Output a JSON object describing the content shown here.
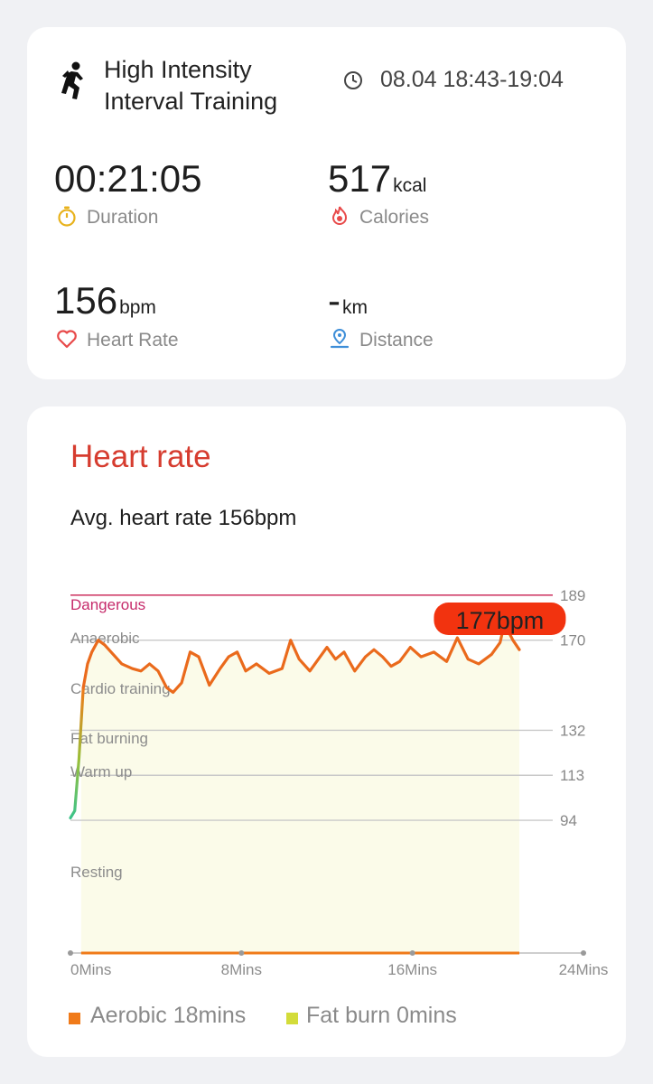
{
  "workout": {
    "title_line1": "High Intensity",
    "title_line2": "Interval Training",
    "time_range": "08.04 18:43-19:04"
  },
  "stats": {
    "duration": {
      "value": "00:21:05",
      "unit": "",
      "label": "Duration",
      "icon": "stopwatch-icon",
      "color": "#e8b21c"
    },
    "calories": {
      "value": "517",
      "unit": "kcal",
      "label": "Calories",
      "icon": "flame-icon",
      "color": "#e84a4a"
    },
    "heart_rate": {
      "value": "156",
      "unit": "bpm",
      "label": "Heart Rate",
      "icon": "heart-icon",
      "color": "#e84a4a"
    },
    "distance": {
      "value": "-",
      "unit": "km",
      "label": "Distance",
      "icon": "location-pin-icon",
      "color": "#3e8ed8"
    }
  },
  "heart_section": {
    "title": "Heart rate",
    "avg_text": "Avg. heart rate 156bpm"
  },
  "chart_data": {
    "type": "area",
    "zones": [
      {
        "name": "Dangerous",
        "threshold": 189
      },
      {
        "name": "Anaerobic",
        "threshold": 170
      },
      {
        "name": "Cardio training",
        "threshold": 132
      },
      {
        "name": "Fat burning",
        "threshold": 113
      },
      {
        "name": "Warm up",
        "threshold": 94
      },
      {
        "name": "Resting",
        "threshold": null
      }
    ],
    "x_ticks": [
      "0Mins",
      "8Mins",
      "16Mins",
      "24Mins"
    ],
    "xlim": [
      0,
      24
    ],
    "ylim": [
      38,
      200
    ],
    "peak_label": "177bpm",
    "peak": {
      "x": 20.3,
      "y": 177
    },
    "series": [
      {
        "values": [
          [
            0.0,
            95
          ],
          [
            0.2,
            98
          ],
          [
            0.4,
            120
          ],
          [
            0.6,
            150
          ],
          [
            0.8,
            160
          ],
          [
            1.0,
            165
          ],
          [
            1.3,
            170
          ],
          [
            1.6,
            168
          ],
          [
            2.0,
            164
          ],
          [
            2.4,
            160
          ],
          [
            2.9,
            158
          ],
          [
            3.3,
            157
          ],
          [
            3.7,
            160
          ],
          [
            4.1,
            157
          ],
          [
            4.5,
            150
          ],
          [
            4.8,
            148
          ],
          [
            5.2,
            152
          ],
          [
            5.6,
            165
          ],
          [
            6.0,
            163
          ],
          [
            6.5,
            151
          ],
          [
            7.0,
            158
          ],
          [
            7.4,
            163
          ],
          [
            7.8,
            165
          ],
          [
            8.2,
            157
          ],
          [
            8.7,
            160
          ],
          [
            9.3,
            156
          ],
          [
            9.9,
            158
          ],
          [
            10.3,
            170
          ],
          [
            10.7,
            162
          ],
          [
            11.2,
            157
          ],
          [
            11.6,
            162
          ],
          [
            12.0,
            167
          ],
          [
            12.4,
            162
          ],
          [
            12.8,
            165
          ],
          [
            13.3,
            157
          ],
          [
            13.8,
            163
          ],
          [
            14.2,
            166
          ],
          [
            14.6,
            163
          ],
          [
            15.0,
            159
          ],
          [
            15.4,
            161
          ],
          [
            15.9,
            167
          ],
          [
            16.4,
            163
          ],
          [
            17.0,
            165
          ],
          [
            17.6,
            161
          ],
          [
            18.1,
            171
          ],
          [
            18.6,
            162
          ],
          [
            19.1,
            160
          ],
          [
            19.7,
            164
          ],
          [
            20.1,
            169
          ],
          [
            20.3,
            177
          ],
          [
            20.7,
            170
          ],
          [
            21.0,
            166
          ]
        ]
      }
    ]
  },
  "legend": [
    {
      "label": "Aerobic 18mins",
      "color": "#f07a19"
    },
    {
      "label": "Fat burn 0mins",
      "color": "#d3dc3a"
    }
  ]
}
